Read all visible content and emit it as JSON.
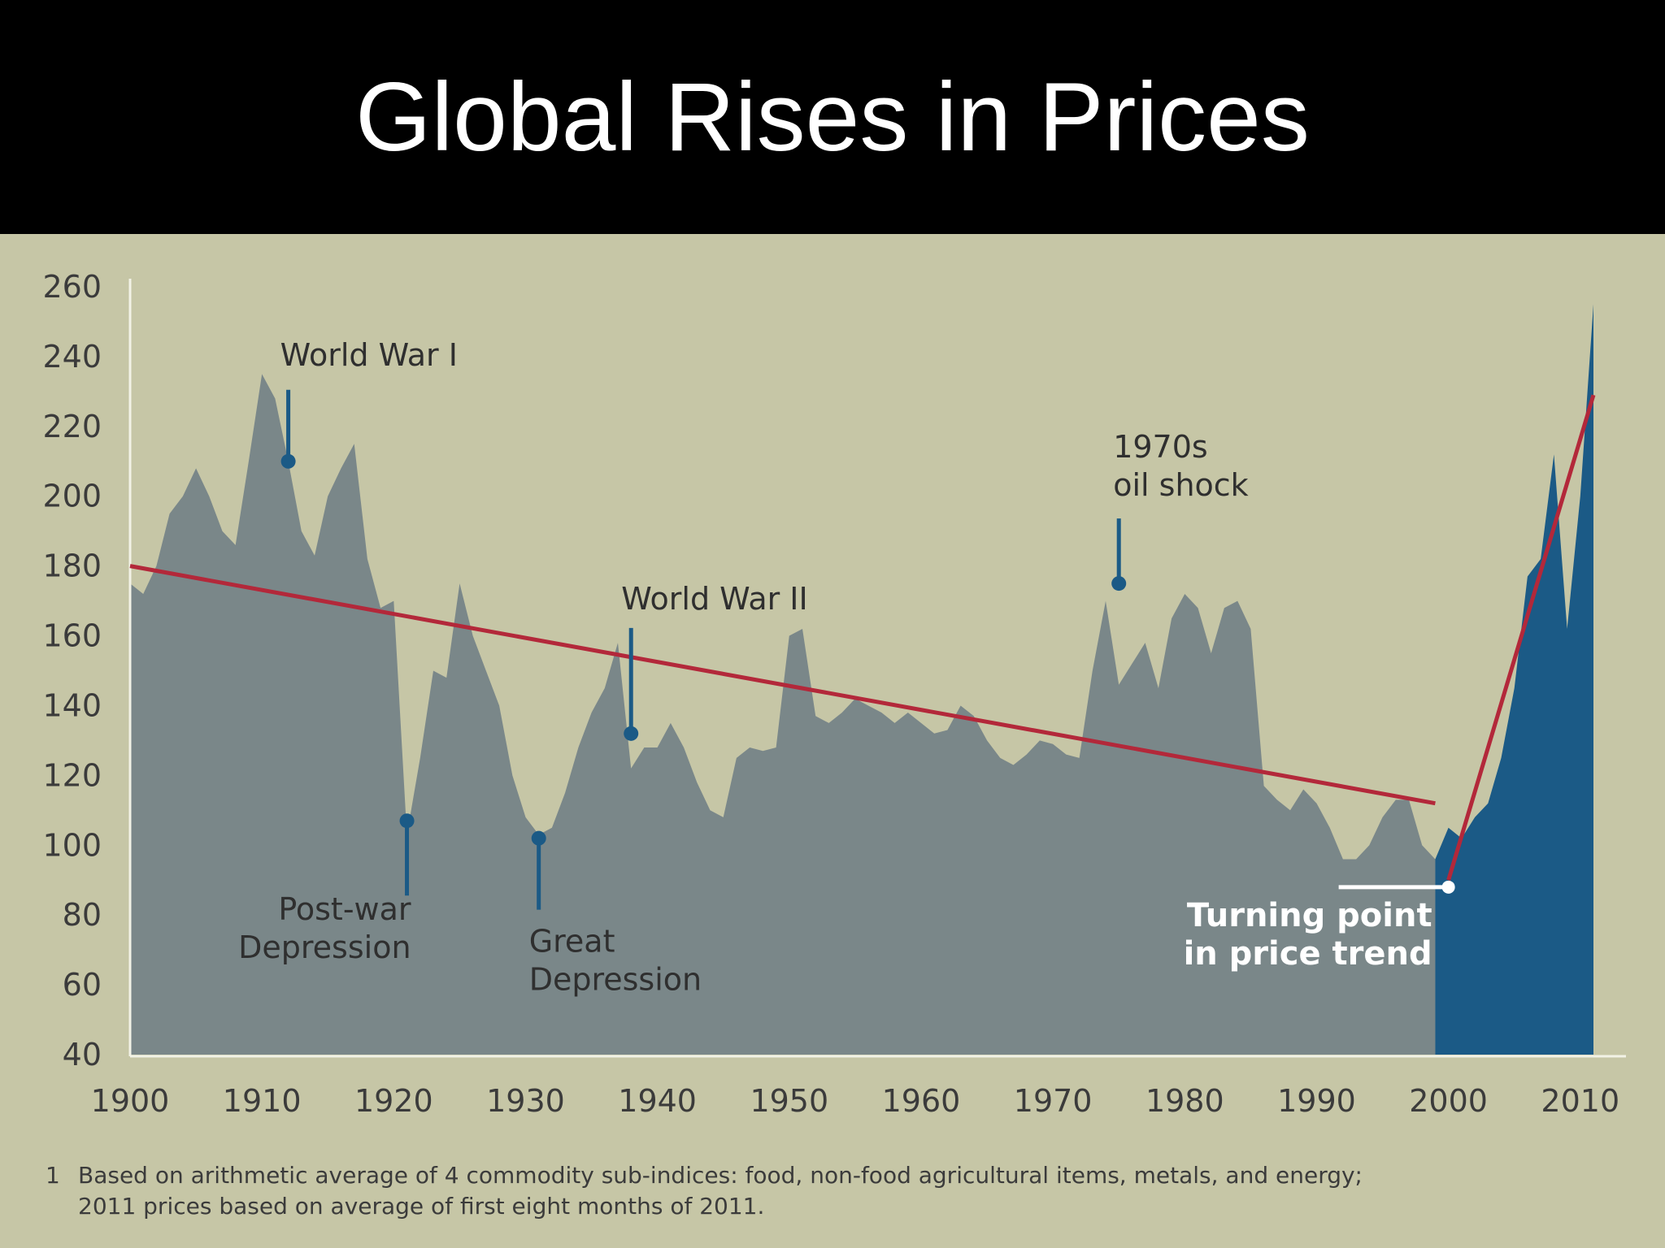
{
  "slide": {
    "title": "Global Rises in Prices"
  },
  "colors": {
    "background": "#c6c6a6",
    "area_gray": "#7a8789",
    "area_blue": "#1b5a86",
    "trend": "#b3283a",
    "marker": "#1b5a86"
  },
  "chart_data": {
    "type": "area",
    "xlim": [
      1900,
      2011
    ],
    "ylim": [
      40,
      260
    ],
    "x_ticks": [
      1900,
      1910,
      1920,
      1930,
      1940,
      1950,
      1960,
      1970,
      1980,
      1990,
      2000,
      2010
    ],
    "y_ticks": [
      40,
      60,
      80,
      100,
      120,
      140,
      160,
      180,
      200,
      220,
      240,
      260
    ],
    "series": [
      {
        "x": [
          1900,
          1901,
          1902,
          1903,
          1904,
          1905,
          1906,
          1907,
          1908,
          1909,
          1910,
          1911,
          1912,
          1913,
          1914,
          1915,
          1916,
          1917,
          1918,
          1919,
          1920,
          1921,
          1922,
          1923,
          1924,
          1925,
          1926,
          1927,
          1928,
          1929,
          1930,
          1931,
          1932,
          1933,
          1934,
          1935,
          1936,
          1937,
          1938,
          1939,
          1940,
          1941,
          1942,
          1943,
          1944,
          1945,
          1946,
          1947,
          1948,
          1949,
          1950,
          1951,
          1952,
          1953,
          1954,
          1955,
          1956,
          1957,
          1958,
          1959,
          1960,
          1961,
          1962,
          1963,
          1964,
          1965,
          1966,
          1967,
          1968,
          1969,
          1970,
          1971,
          1972,
          1973,
          1974,
          1975,
          1976,
          1977,
          1978,
          1979,
          1980,
          1981,
          1982,
          1983,
          1984,
          1985,
          1986,
          1987,
          1988,
          1989,
          1990,
          1991,
          1992,
          1993,
          1994,
          1995,
          1996,
          1997,
          1998,
          1999
        ],
        "values": [
          175,
          172,
          180,
          195,
          200,
          208,
          200,
          190,
          186,
          210,
          235,
          228,
          210,
          190,
          183,
          200,
          208,
          215,
          182,
          168,
          170,
          103,
          125,
          150,
          148,
          175,
          160,
          150,
          140,
          120,
          108,
          103,
          105,
          115,
          128,
          138,
          145,
          158,
          122,
          128,
          128,
          135,
          128,
          118,
          110,
          108,
          125,
          128,
          127,
          128,
          160,
          162,
          137,
          135,
          138,
          142,
          140,
          138,
          135,
          138,
          135,
          132,
          133,
          140,
          137,
          130,
          125,
          123,
          126,
          130,
          129,
          126,
          125,
          150,
          170,
          146,
          152,
          158,
          145,
          165,
          172,
          168,
          155,
          168,
          170,
          162,
          117,
          113,
          110,
          116,
          112,
          105,
          96,
          96,
          100,
          108,
          113,
          113,
          100,
          96
        ]
      },
      {
        "x": [
          1999,
          2000,
          2001,
          2002,
          2003,
          2004,
          2005,
          2006,
          2007,
          2008,
          2009,
          2010,
          2011
        ],
        "values": [
          96,
          105,
          102,
          108,
          112,
          125,
          145,
          177,
          182,
          212,
          162,
          200,
          255
        ]
      }
    ],
    "trend_lines": [
      {
        "x": [
          1900,
          1999
        ],
        "values": [
          180,
          112
        ]
      },
      {
        "x": [
          2000,
          2011
        ],
        "values": [
          90,
          229
        ]
      }
    ],
    "annotations": [
      {
        "lines": [
          "World War I"
        ],
        "x": 1912,
        "y": 210
      },
      {
        "lines": [
          "Post-war",
          "Depression"
        ],
        "x": 1921,
        "y": 107
      },
      {
        "lines": [
          "Great",
          "Depression"
        ],
        "x": 1931,
        "y": 102
      },
      {
        "lines": [
          "World War II"
        ],
        "x": 1938,
        "y": 132
      },
      {
        "lines": [
          "1970s",
          "oil shock"
        ],
        "x": 1975,
        "y": 175
      },
      {
        "lines": [
          "Turning point",
          "in price trend"
        ],
        "x": 2000,
        "y": 88
      }
    ],
    "footnote": {
      "marker": "1",
      "line1": "Based on arithmetic average of 4 commodity sub-indices: food, non-food agricultural items, metals, and energy;",
      "line2": "2011 prices based on average of first eight months of 2011."
    }
  }
}
